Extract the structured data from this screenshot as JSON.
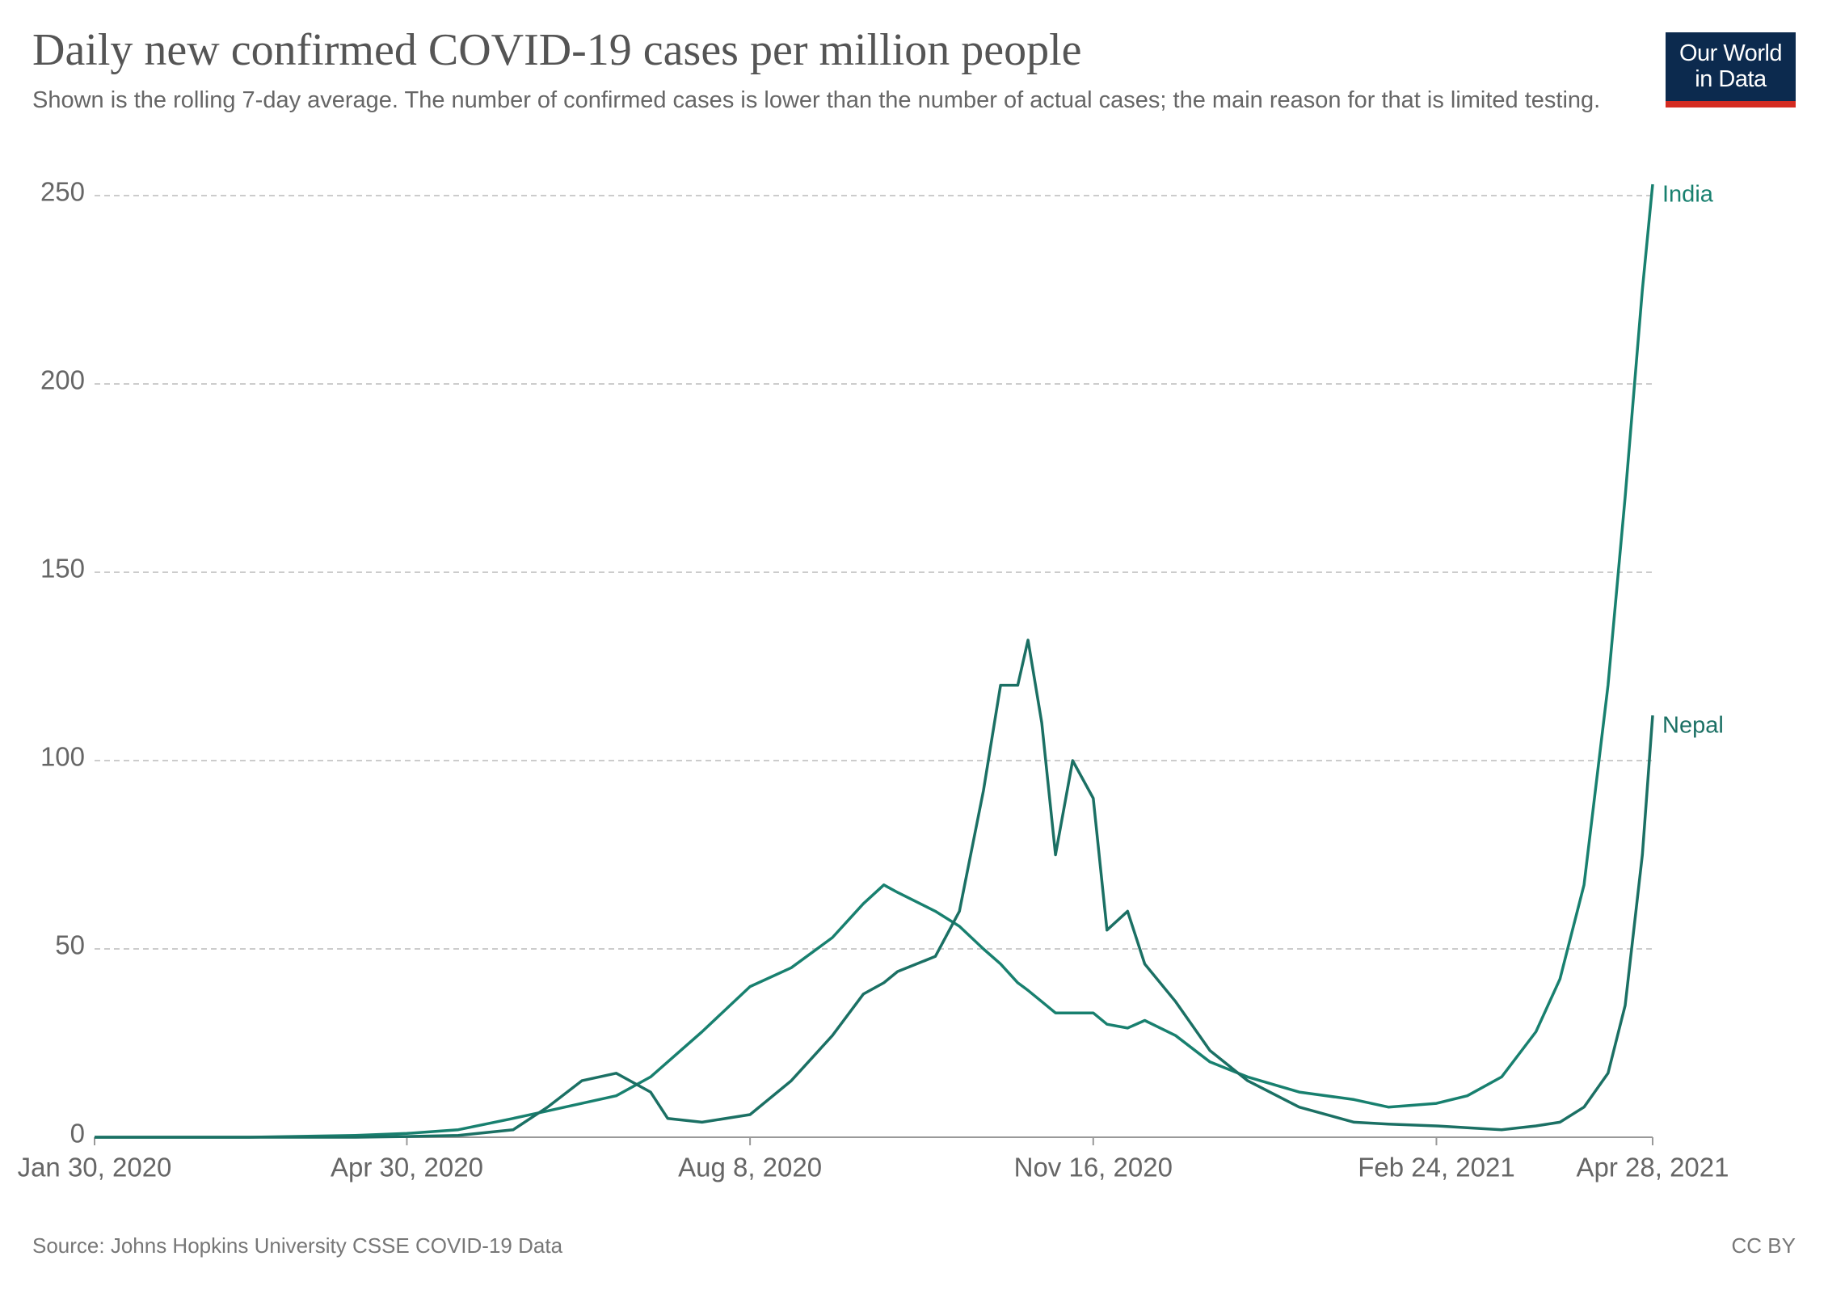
{
  "chart_data": {
    "type": "line",
    "title": "Daily new confirmed COVID-19 cases per million people",
    "subtitle": "Shown is the rolling 7-day average. The number of confirmed cases is lower than the number of actual cases; the main reason for that is limited testing.",
    "logo": [
      "Our World",
      "in Data"
    ],
    "source": "Source: Johns Hopkins University CSSE COVID-19 Data",
    "license": "CC BY",
    "x": [
      "2020-01-30",
      "2020-03-15",
      "2020-04-15",
      "2020-04-30",
      "2020-05-15",
      "2020-05-31",
      "2020-06-10",
      "2020-06-20",
      "2020-06-30",
      "2020-07-10",
      "2020-07-15",
      "2020-07-25",
      "2020-08-08",
      "2020-08-20",
      "2020-09-01",
      "2020-09-10",
      "2020-09-16",
      "2020-09-20",
      "2020-10-01",
      "2020-10-08",
      "2020-10-15",
      "2020-10-20",
      "2020-10-25",
      "2020-10-28",
      "2020-11-01",
      "2020-11-05",
      "2020-11-10",
      "2020-11-16",
      "2020-11-20",
      "2020-11-26",
      "2020-12-01",
      "2020-12-10",
      "2020-12-20",
      "2020-12-31",
      "2021-01-15",
      "2021-01-31",
      "2021-02-10",
      "2021-02-24",
      "2021-03-05",
      "2021-03-15",
      "2021-03-25",
      "2021-04-01",
      "2021-04-08",
      "2021-04-15",
      "2021-04-20",
      "2021-04-25",
      "2021-04-28"
    ],
    "series": [
      {
        "name": "India",
        "color": "#18806f",
        "values": [
          0,
          0,
          0.5,
          1,
          2,
          5,
          7,
          9,
          11,
          16,
          20,
          28,
          40,
          45,
          53,
          62,
          67,
          65,
          60,
          56,
          50,
          46,
          41,
          39,
          36,
          33,
          33,
          33,
          30,
          29,
          31,
          27,
          20,
          16,
          12,
          10,
          8,
          9,
          11,
          16,
          28,
          42,
          67,
          120,
          170,
          225,
          253
        ]
      },
      {
        "name": "Nepal",
        "color": "#1b7064",
        "values": [
          0,
          0,
          0,
          0.2,
          0.5,
          2,
          8,
          15,
          17,
          12,
          5,
          4,
          6,
          15,
          27,
          38,
          41,
          44,
          48,
          60,
          92,
          120,
          120,
          132,
          110,
          75,
          100,
          90,
          55,
          60,
          46,
          36,
          23,
          15,
          8,
          4,
          3.5,
          3,
          2.5,
          2,
          3,
          4,
          8,
          17,
          35,
          75,
          112
        ]
      }
    ],
    "xlim": [
      "2020-01-30",
      "2021-04-28"
    ],
    "xticks": [
      {
        "value": "2020-01-30",
        "label": "Jan 30, 2020"
      },
      {
        "value": "2020-04-30",
        "label": "Apr 30, 2020"
      },
      {
        "value": "2020-08-08",
        "label": "Aug 8, 2020"
      },
      {
        "value": "2020-11-16",
        "label": "Nov 16, 2020"
      },
      {
        "value": "2021-02-24",
        "label": "Feb 24, 2021"
      },
      {
        "value": "2021-04-28",
        "label": "Apr 28, 2021"
      }
    ],
    "ylim": [
      0,
      250
    ],
    "yticks": [
      0,
      50,
      100,
      150,
      200,
      250
    ],
    "grid": true
  }
}
